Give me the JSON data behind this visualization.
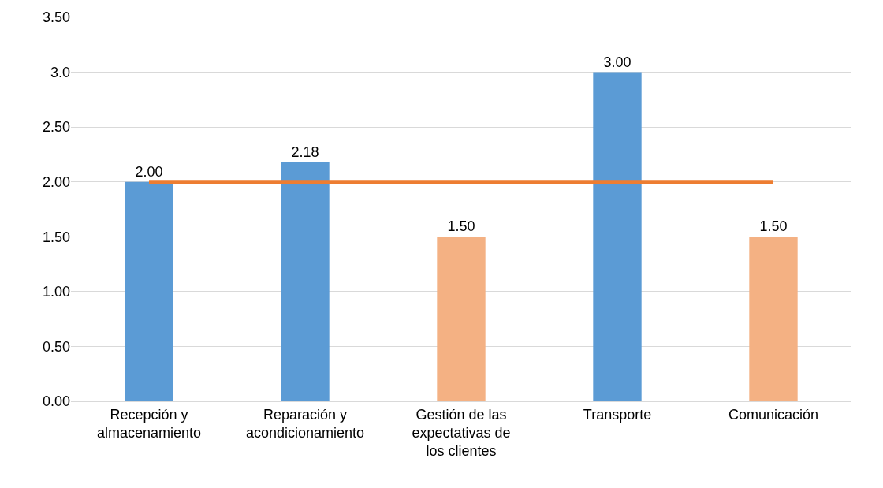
{
  "chart_data": {
    "type": "bar",
    "categories": [
      "Recepción y almacenamiento",
      "Reparación y acondicionamiento",
      "Gestión de las expectativas de los clientes",
      "Transporte",
      "Comunicación"
    ],
    "series": [
      {
        "colors": [
          "#5b9bd5",
          "#5b9bd5",
          "#f4b183",
          "#5b9bd5",
          "#f4b183"
        ],
        "values": [
          2.0,
          2.18,
          1.5,
          3.0,
          1.5
        ],
        "value_labels": [
          "2.00",
          "2.18",
          "1.50",
          "3.00",
          "1.50"
        ]
      },
      {
        "type": "line",
        "color": "#ed7d31",
        "values": [
          2.0,
          2.0,
          2.0,
          2.0,
          2.0
        ]
      }
    ],
    "ylim": [
      0,
      3.5
    ],
    "yticks": [
      {
        "value": 0,
        "label": "0.00"
      },
      {
        "value": 0.5,
        "label": "0.50"
      },
      {
        "value": 1,
        "label": "1.00"
      },
      {
        "value": 1.5,
        "label": "1.50"
      },
      {
        "value": 2,
        "label": "2.00"
      },
      {
        "value": 2.5,
        "label": "2.50"
      },
      {
        "value": 3,
        "label": "3.0"
      },
      {
        "value": 3.5,
        "label": "3.50"
      }
    ],
    "grid": "y",
    "legend": false,
    "marker": "none",
    "line_style": "solid"
  }
}
